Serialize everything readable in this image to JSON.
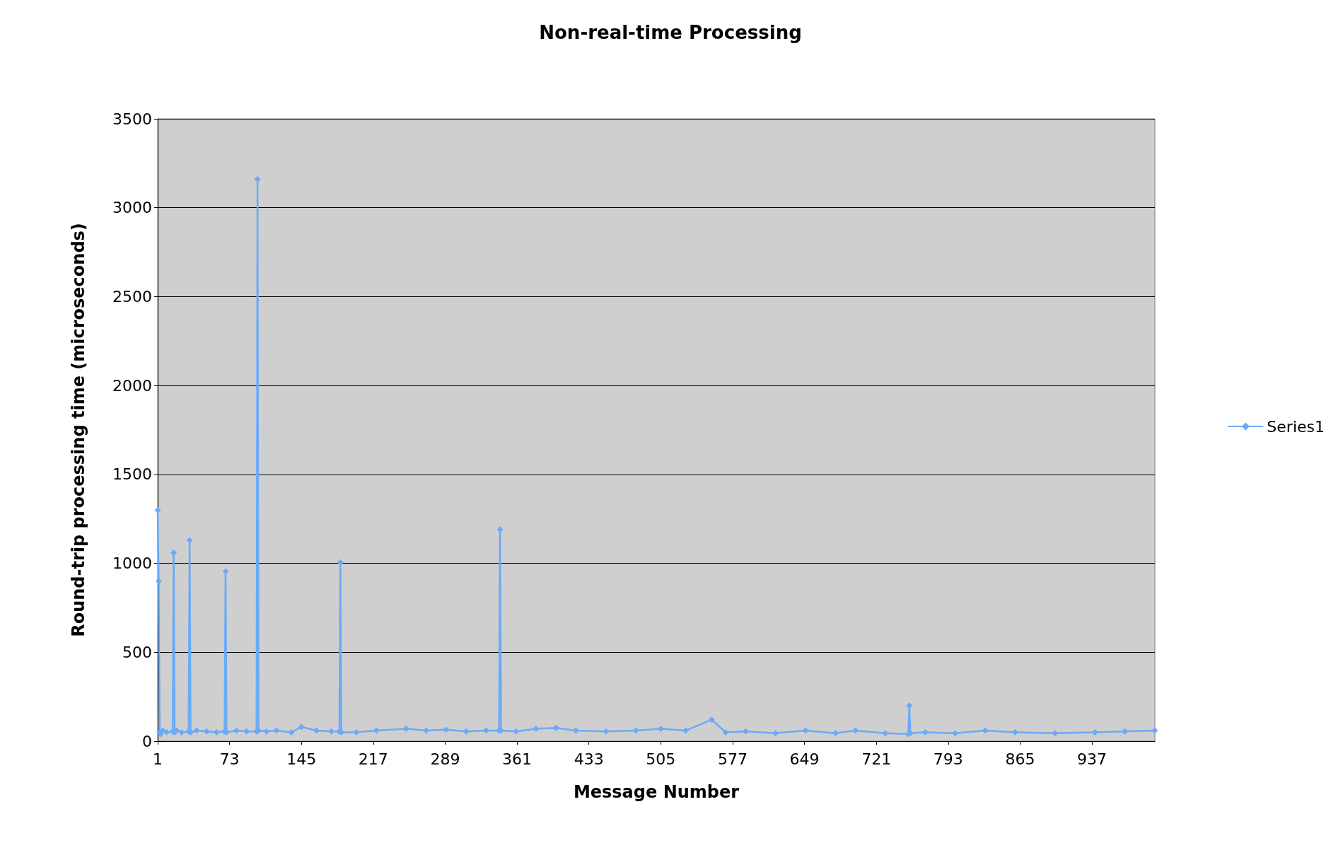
{
  "chart_data": {
    "type": "line",
    "title": "Non-real-time Processing",
    "xlabel": "Message Number",
    "ylabel": "Round-trip processing time (microseconds)",
    "x": [
      1,
      2,
      3,
      4,
      6,
      10,
      16,
      17,
      18,
      20,
      25,
      32,
      33,
      34,
      40,
      50,
      60,
      68,
      69,
      70,
      80,
      90,
      100,
      101,
      102,
      110,
      120,
      135,
      145,
      160,
      175,
      183,
      184,
      185,
      200,
      220,
      250,
      270,
      290,
      310,
      330,
      343,
      344,
      345,
      360,
      380,
      400,
      420,
      450,
      480,
      505,
      530,
      556,
      570,
      590,
      620,
      650,
      680,
      700,
      730,
      753,
      754,
      755,
      770,
      800,
      830,
      860,
      900,
      940,
      970,
      1000
    ],
    "series": [
      {
        "name": "Series1",
        "color": "#6aaaf8",
        "values": [
          1300,
          900,
          50,
          40,
          60,
          50,
          55,
          1060,
          50,
          60,
          50,
          55,
          1130,
          50,
          60,
          55,
          50,
          55,
          955,
          50,
          60,
          55,
          55,
          3160,
          60,
          55,
          60,
          50,
          80,
          60,
          55,
          55,
          1005,
          50,
          50,
          60,
          70,
          60,
          65,
          55,
          60,
          60,
          1190,
          60,
          55,
          70,
          75,
          60,
          55,
          60,
          70,
          60,
          120,
          50,
          55,
          45,
          60,
          45,
          60,
          45,
          40,
          200,
          45,
          50,
          45,
          60,
          50,
          45,
          50,
          55,
          60
        ]
      }
    ],
    "xlim": [
      1,
      1000
    ],
    "xticks": [
      1,
      73,
      145,
      217,
      289,
      361,
      433,
      505,
      577,
      649,
      721,
      793,
      865,
      937
    ],
    "ylim": [
      0,
      3500
    ],
    "yticks": [
      0,
      500,
      1000,
      1500,
      2000,
      2500,
      3000,
      3500
    ],
    "grid": "y",
    "legend": "right",
    "marker": "diamond",
    "line_style": "solid"
  }
}
